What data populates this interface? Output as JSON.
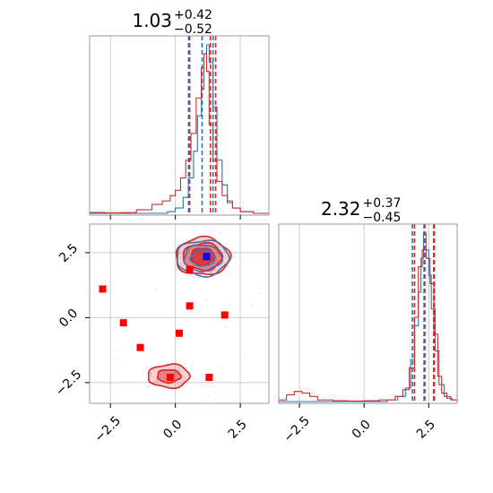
{
  "chart_data": [
    {
      "type": "histogram",
      "panel": "marginal-param-1",
      "title": {
        "value": "1.03",
        "plus": "+0.42",
        "minus": "−0.52"
      },
      "xlim": [
        -3.3,
        3.6
      ],
      "grid": true,
      "series": [
        {
          "color": "#1f77b4",
          "bin_edges": [
            -3.3,
            -2.7,
            -2.1,
            -1.5,
            -0.9,
            -0.3,
            0.0,
            0.3,
            0.5,
            0.7,
            0.85,
            1.0,
            1.1,
            1.2,
            1.3,
            1.45,
            1.6,
            1.8,
            2.0,
            2.2,
            2.5,
            3.0,
            3.6
          ],
          "values": [
            0,
            0,
            0,
            0,
            0,
            0.01,
            0.03,
            0.09,
            0.2,
            0.35,
            0.55,
            0.7,
            0.9,
            0.95,
            0.85,
            0.6,
            0.3,
            0.16,
            0.07,
            0.03,
            0.01,
            0
          ],
          "quantiles": [
            0.51,
            1.03,
            1.45
          ]
        },
        {
          "color": "#d62728",
          "bin_edges": [
            -3.3,
            -2.7,
            -2.1,
            -1.5,
            -0.9,
            -0.5,
            -0.2,
            0.0,
            0.2,
            0.4,
            0.6,
            0.8,
            1.0,
            1.1,
            1.2,
            1.3,
            1.45,
            1.6,
            1.8,
            2.0,
            2.2,
            2.5,
            3.0,
            3.6
          ],
          "values": [
            0.005,
            0.003,
            0.004,
            0.02,
            0.05,
            0.07,
            0.1,
            0.13,
            0.2,
            0.3,
            0.45,
            0.65,
            0.82,
            0.9,
            0.8,
            0.5,
            0.3,
            0.18,
            0.1,
            0.06,
            0.03,
            0.01,
            0
          ],
          "quantiles": [
            0.55,
            1.35,
            1.55
          ]
        }
      ]
    },
    {
      "type": "histogram",
      "panel": "marginal-param-2",
      "title": {
        "value": "2.32",
        "plus": "+0.37",
        "minus": "−0.45"
      },
      "xlim": [
        -3.3,
        3.6
      ],
      "xticks": [
        "−2.5",
        "0.0",
        "2.5"
      ],
      "xtick_values": [
        -2.5,
        0.0,
        2.5
      ],
      "grid": true,
      "series": [
        {
          "color": "#1f77b4",
          "bin_edges": [
            -3.3,
            -2.7,
            -2.1,
            -1.5,
            -0.9,
            -0.3,
            0.3,
            0.9,
            1.3,
            1.6,
            1.8,
            1.95,
            2.1,
            2.2,
            2.3,
            2.4,
            2.5,
            2.6,
            2.75,
            2.9,
            3.1,
            3.35,
            3.6
          ],
          "values": [
            0,
            0,
            0,
            0,
            0,
            0,
            0,
            0.01,
            0.03,
            0.08,
            0.25,
            0.45,
            0.65,
            0.85,
            1.0,
            0.9,
            0.75,
            0.55,
            0.3,
            0.1,
            0.03,
            0.01
          ],
          "quantiles": [
            1.87,
            2.32,
            2.69
          ]
        },
        {
          "color": "#d62728",
          "bin_edges": [
            -3.3,
            -3.0,
            -2.7,
            -2.4,
            -2.1,
            -1.8,
            -1.2,
            -0.6,
            0.0,
            0.6,
            1.2,
            1.5,
            1.75,
            1.95,
            2.1,
            2.25,
            2.4,
            2.55,
            2.7,
            2.85,
            3.0,
            3.2,
            3.4,
            3.6
          ],
          "values": [
            0.01,
            0.04,
            0.06,
            0.05,
            0.03,
            0.01,
            0.005,
            0.003,
            0.005,
            0.01,
            0.03,
            0.07,
            0.2,
            0.5,
            0.8,
            0.9,
            0.85,
            0.7,
            0.4,
            0.15,
            0.05,
            0.02,
            0.01
          ],
          "quantiles": [
            1.95,
            2.35,
            2.72
          ]
        }
      ]
    },
    {
      "type": "scatter",
      "panel": "joint-param1-param2",
      "xlim": [
        -3.3,
        3.6
      ],
      "ylim": [
        -3.3,
        3.6
      ],
      "xticks": [
        "−2.5",
        "0.0",
        "2.5"
      ],
      "xtick_values": [
        -2.5,
        0.0,
        2.5
      ],
      "yticks": [
        "−2.5",
        "0.0",
        "2.5"
      ],
      "ytick_values": [
        -2.5,
        0.0,
        2.5
      ],
      "grid": true,
      "contours_blue": {
        "center": [
          1.05,
          2.3
        ],
        "radii": [
          [
            1.0,
            0.68
          ],
          [
            0.72,
            0.5
          ],
          [
            0.45,
            0.32
          ]
        ]
      },
      "contours_red": [
        {
          "center": [
            1.05,
            2.35
          ],
          "radii": [
            [
              1.05,
              0.72
            ],
            [
              0.75,
              0.52
            ],
            [
              0.45,
              0.33
            ]
          ]
        },
        {
          "center": [
            -0.25,
            -2.25
          ],
          "radii": [
            [
              0.8,
              0.45
            ],
            [
              0.45,
              0.25
            ]
          ]
        }
      ],
      "red_markers": [
        {
          "x": -2.8,
          "y": 1.1
        },
        {
          "x": -2.0,
          "y": -0.2
        },
        {
          "x": -1.35,
          "y": -1.15
        },
        {
          "x": -0.2,
          "y": -2.3
        },
        {
          "x": 0.15,
          "y": -0.6
        },
        {
          "x": 0.55,
          "y": 0.45
        },
        {
          "x": 0.55,
          "y": 1.85
        },
        {
          "x": 1.3,
          "y": -2.3
        },
        {
          "x": 1.9,
          "y": 0.1
        }
      ],
      "blue_marker": {
        "x": 1.2,
        "y": 2.35
      }
    }
  ]
}
